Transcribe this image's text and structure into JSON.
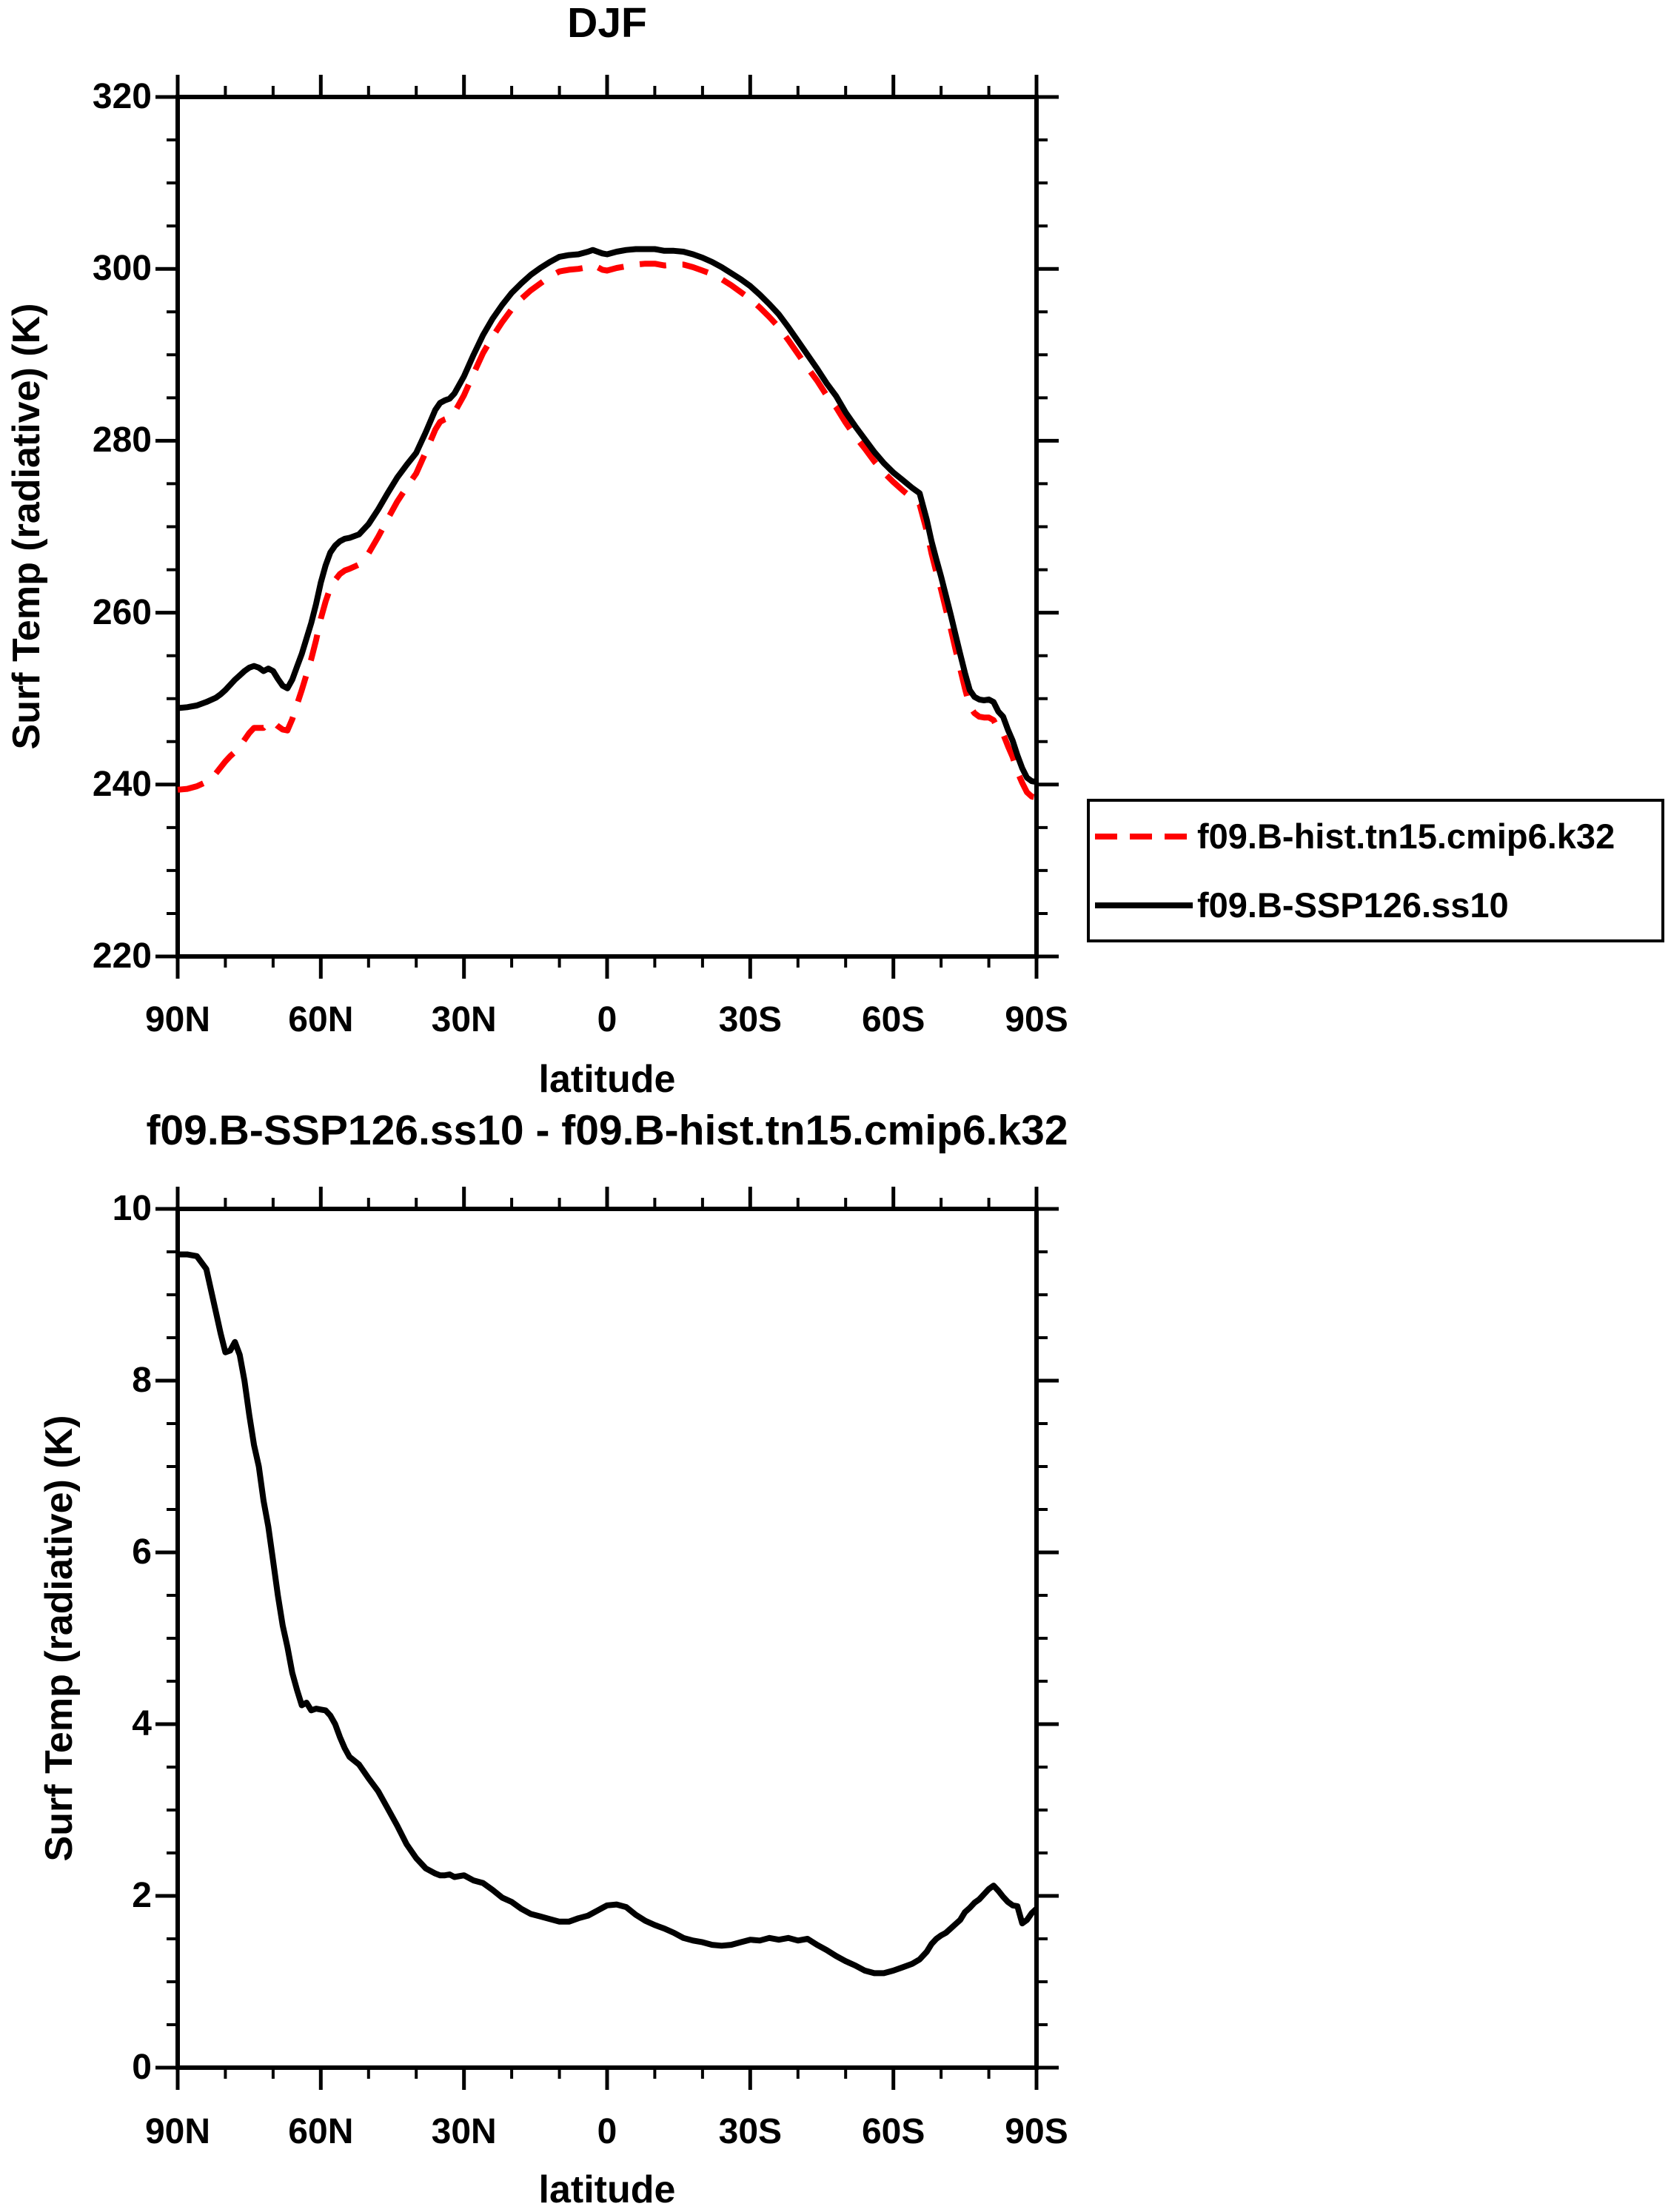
{
  "page": {
    "background": "#ffffff",
    "foreground": "#000000"
  },
  "legend": {
    "items": [
      {
        "label": "f09.B-hist.tn15.cmip6.k32",
        "color": "#ff0000",
        "line_style": "dashed"
      },
      {
        "label": "f09.B-SSP126.ss10",
        "color": "#000000",
        "line_style": "solid"
      }
    ]
  },
  "chart_data": [
    {
      "type": "line",
      "title": "DJF",
      "xlabel": "latitude",
      "ylabel": "Surf Temp (radiative) (K)",
      "xlim": [
        90,
        -90
      ],
      "ylim": [
        220,
        320
      ],
      "grid": false,
      "legend_position": "right-of-plot-below-curves",
      "x_tick_values": [
        90,
        60,
        30,
        0,
        -30,
        -60,
        -90
      ],
      "x_tick_labels": [
        "90N",
        "60N",
        "30N",
        "0",
        "30S",
        "60S",
        "90S"
      ],
      "x_minor_step": 10,
      "y_tick_values": [
        220,
        240,
        260,
        280,
        300,
        320
      ],
      "y_tick_labels": [
        "220",
        "240",
        "260",
        "280",
        "300",
        "320"
      ],
      "y_minor_step": 5,
      "x": [
        90,
        88,
        86,
        84,
        82,
        81,
        80,
        79,
        78,
        77,
        76,
        75,
        74,
        73,
        72,
        71,
        70,
        69,
        68,
        67,
        66,
        65,
        64,
        63,
        62,
        61,
        60,
        59,
        58,
        57,
        56,
        55,
        54,
        52,
        50,
        48,
        46,
        44,
        42,
        40,
        38,
        36,
        35,
        34,
        33,
        32,
        30,
        28,
        26,
        24,
        22,
        20,
        18,
        16,
        14,
        12,
        10,
        8,
        6,
        4,
        3,
        2,
        1,
        0,
        -2,
        -4,
        -6,
        -8,
        -10,
        -12,
        -14,
        -16,
        -18,
        -20,
        -22,
        -24,
        -26,
        -28,
        -30,
        -32,
        -34,
        -36,
        -38,
        -40,
        -42,
        -44,
        -46,
        -48,
        -50,
        -52,
        -54,
        -56,
        -58,
        -60,
        -62,
        -64,
        -65.5,
        -67,
        -68,
        -69,
        -70,
        -71,
        -72,
        -73,
        -74,
        -75,
        -76,
        -77,
        -78,
        -79,
        -80,
        -81,
        -82,
        -83,
        -84,
        -85,
        -86,
        -87,
        -88,
        -89,
        -90
      ],
      "series": [
        {
          "name": "f09.B-hist.tn15.cmip6.k32",
          "color": "#ff0000",
          "line_style": "dashed",
          "values": [
            239.4,
            239.5,
            239.8,
            240.3,
            241.3,
            242.0,
            242.7,
            243.3,
            243.8,
            244.4,
            245.2,
            246.0,
            246.6,
            246.6,
            246.6,
            247.2,
            247.3,
            246.8,
            246.4,
            246.3,
            247.6,
            249.3,
            251.0,
            252.8,
            254.6,
            256.8,
            259.3,
            261.3,
            262.9,
            263.8,
            264.5,
            264.9,
            265.1,
            265.6,
            266.9,
            268.8,
            270.9,
            272.9,
            274.6,
            276.2,
            278.7,
            281.3,
            282.2,
            282.5,
            282.7,
            283.3,
            285.3,
            287.8,
            290.2,
            292.1,
            293.8,
            295.3,
            296.5,
            297.5,
            298.3,
            299.1,
            299.7,
            299.9,
            300.0,
            300.2,
            300.4,
            300.2,
            299.9,
            299.8,
            300.1,
            300.3,
            300.5,
            300.6,
            300.6,
            300.4,
            300.5,
            300.5,
            300.2,
            299.8,
            299.4,
            298.8,
            298.1,
            297.3,
            296.5,
            295.5,
            294.4,
            293.2,
            291.7,
            290.1,
            288.5,
            287.0,
            285.3,
            283.9,
            282.1,
            280.5,
            279.1,
            277.6,
            276.3,
            275.2,
            274.2,
            273.3,
            272.6,
            269.5,
            266.9,
            264.7,
            262.7,
            260.4,
            258.2,
            255.8,
            253.5,
            251.2,
            249.1,
            248.3,
            247.9,
            247.8,
            247.8,
            247.5,
            246.4,
            245.9,
            244.5,
            243.2,
            241.5,
            240.2,
            239.1,
            238.6,
            238.5
          ]
        },
        {
          "name": "f09.B-SSP126.ss10",
          "color": "#000000",
          "line_style": "solid",
          "values": [
            248.9,
            249.0,
            249.2,
            249.6,
            250.1,
            250.5,
            251.0,
            251.6,
            252.2,
            252.7,
            253.2,
            253.6,
            253.8,
            253.6,
            253.2,
            253.5,
            253.2,
            252.3,
            251.5,
            251.2,
            252.2,
            253.7,
            255.2,
            257.0,
            258.8,
            261.0,
            263.5,
            265.5,
            267.0,
            267.8,
            268.3,
            268.6,
            268.7,
            269.1,
            270.3,
            272.0,
            273.9,
            275.7,
            277.2,
            278.6,
            281.0,
            283.6,
            284.4,
            284.7,
            284.9,
            285.5,
            287.5,
            290.0,
            292.3,
            294.2,
            295.8,
            297.2,
            298.3,
            299.3,
            300.1,
            300.8,
            301.4,
            301.6,
            301.7,
            302.0,
            302.2,
            302.0,
            301.8,
            301.7,
            302.0,
            302.2,
            302.3,
            302.3,
            302.3,
            302.1,
            302.1,
            302.0,
            301.7,
            301.3,
            300.8,
            300.2,
            299.5,
            298.8,
            298.0,
            297.0,
            295.9,
            294.7,
            293.2,
            291.6,
            290.0,
            288.4,
            286.7,
            285.2,
            283.3,
            281.7,
            280.2,
            278.7,
            277.4,
            276.3,
            275.4,
            274.5,
            273.9,
            270.8,
            268.3,
            266.2,
            264.2,
            262.0,
            259.8,
            257.5,
            255.2,
            253.0,
            251.0,
            250.2,
            249.9,
            249.8,
            249.9,
            249.6,
            248.5,
            247.9,
            246.4,
            245.1,
            243.4,
            241.9,
            240.8,
            240.4,
            240.3
          ]
        }
      ]
    },
    {
      "type": "line",
      "title": "f09.B-SSP126.ss10 - f09.B-hist.tn15.cmip6.k32",
      "xlabel": "latitude",
      "ylabel": "Surf Temp (radiative) (K)",
      "xlim": [
        90,
        -90
      ],
      "ylim": [
        0,
        10
      ],
      "grid": false,
      "x_tick_values": [
        90,
        60,
        30,
        0,
        -30,
        -60,
        -90
      ],
      "x_tick_labels": [
        "90N",
        "60N",
        "30N",
        "0",
        "30S",
        "60S",
        "90S"
      ],
      "x_minor_step": 10,
      "y_tick_values": [
        0,
        2,
        4,
        6,
        8,
        10
      ],
      "y_tick_labels": [
        "0",
        "2",
        "4",
        "6",
        "8",
        "10"
      ],
      "y_minor_step": 0.5,
      "x": [
        90,
        88,
        86,
        84,
        82,
        81,
        80,
        79,
        78,
        77,
        76,
        75,
        74,
        73,
        72,
        71,
        70,
        69,
        68,
        67,
        66,
        65,
        64,
        63,
        62,
        61,
        60,
        59,
        58,
        57,
        56,
        55,
        54,
        52,
        50,
        48,
        46,
        44,
        42,
        40,
        38,
        36,
        35,
        34,
        33,
        32,
        30,
        28,
        26,
        24,
        22,
        20,
        18,
        16,
        14,
        12,
        10,
        8,
        6,
        4,
        3,
        2,
        1,
        0,
        -2,
        -4,
        -6,
        -8,
        -10,
        -12,
        -14,
        -16,
        -18,
        -20,
        -22,
        -24,
        -26,
        -28,
        -30,
        -32,
        -34,
        -36,
        -38,
        -40,
        -42,
        -44,
        -46,
        -48,
        -50,
        -52,
        -54,
        -56,
        -58,
        -60,
        -62,
        -64,
        -65.5,
        -67,
        -68,
        -69,
        -70,
        -71,
        -72,
        -73,
        -74,
        -75,
        -76,
        -77,
        -78,
        -79,
        -80,
        -81,
        -82,
        -83,
        -84,
        -85,
        -86,
        -87,
        -88,
        -89,
        -90
      ],
      "series": [
        {
          "name": "f09.B-SSP126.ss10 - f09.B-hist.tn15.cmip6.k32",
          "color": "#000000",
          "line_style": "solid",
          "values": [
            9.47,
            9.47,
            9.45,
            9.3,
            8.8,
            8.55,
            8.33,
            8.35,
            8.45,
            8.3,
            8.0,
            7.6,
            7.25,
            7.0,
            6.6,
            6.3,
            5.9,
            5.5,
            5.15,
            4.9,
            4.6,
            4.4,
            4.22,
            4.25,
            4.16,
            4.18,
            4.17,
            4.16,
            4.1,
            4.0,
            3.85,
            3.72,
            3.62,
            3.53,
            3.37,
            3.22,
            3.02,
            2.82,
            2.6,
            2.44,
            2.32,
            2.26,
            2.24,
            2.24,
            2.25,
            2.22,
            2.24,
            2.18,
            2.15,
            2.07,
            1.98,
            1.93,
            1.85,
            1.79,
            1.76,
            1.73,
            1.7,
            1.7,
            1.74,
            1.77,
            1.8,
            1.83,
            1.86,
            1.89,
            1.9,
            1.87,
            1.78,
            1.71,
            1.66,
            1.62,
            1.57,
            1.51,
            1.48,
            1.46,
            1.43,
            1.42,
            1.43,
            1.46,
            1.49,
            1.48,
            1.51,
            1.49,
            1.51,
            1.48,
            1.5,
            1.43,
            1.37,
            1.3,
            1.24,
            1.19,
            1.13,
            1.1,
            1.1,
            1.13,
            1.17,
            1.21,
            1.26,
            1.35,
            1.44,
            1.5,
            1.54,
            1.57,
            1.62,
            1.67,
            1.72,
            1.81,
            1.86,
            1.92,
            1.96,
            2.02,
            2.08,
            2.12,
            2.06,
            1.99,
            1.93,
            1.89,
            1.88,
            1.68,
            1.72,
            1.8,
            1.85
          ]
        }
      ]
    }
  ]
}
